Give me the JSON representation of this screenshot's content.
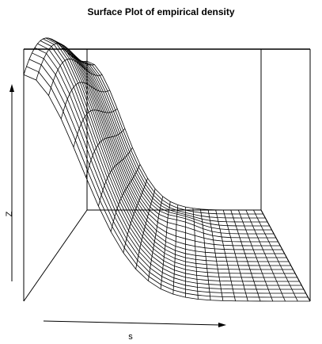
{
  "chart_data": {
    "type": "surface",
    "title": "Surface Plot of empirical density",
    "xlabel": "s",
    "zlabel": "Z",
    "grid_rows": 24,
    "grid_cols": 24,
    "surface_description_values": {
      "peak_z_relative": 1.0,
      "floor_z_relative": 0.0
    },
    "colors": {
      "line": "#000000",
      "background": "#ffffff"
    }
  }
}
